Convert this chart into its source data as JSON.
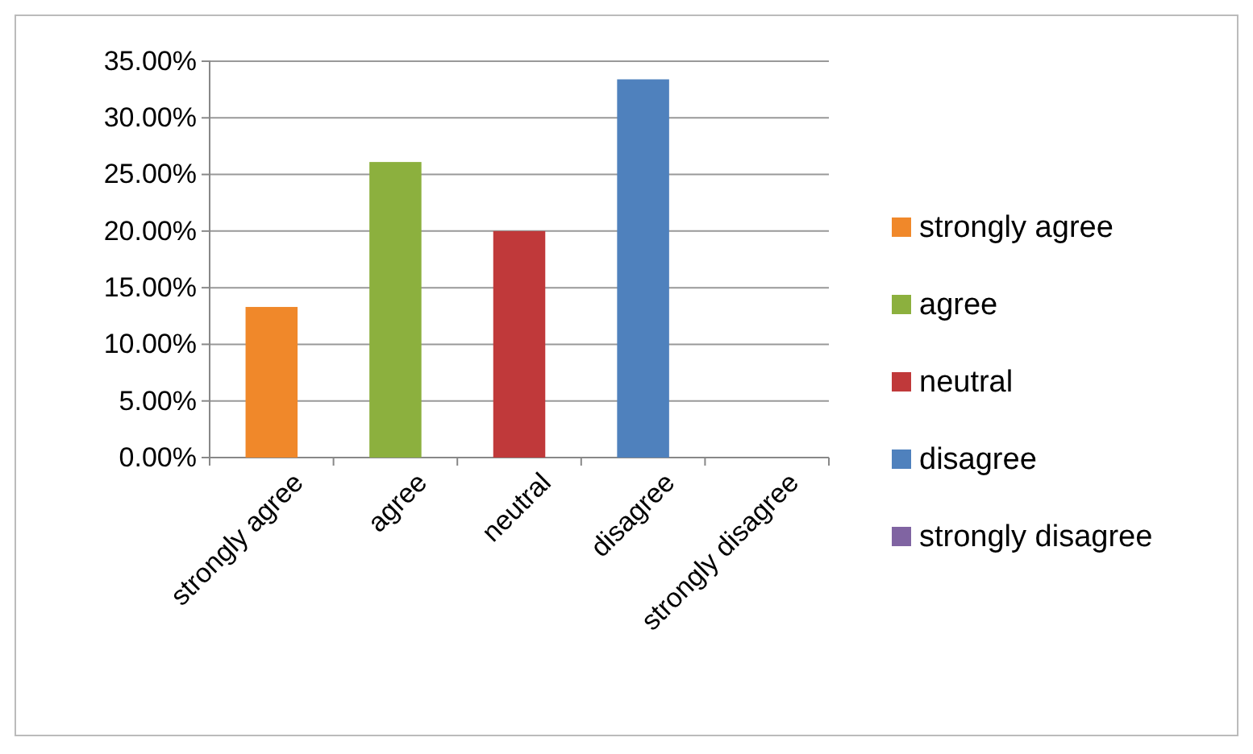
{
  "chart_data": {
    "type": "bar",
    "categories": [
      "strongly agree",
      "agree",
      "neutral",
      "disagree",
      "strongly disagree"
    ],
    "series": [
      {
        "name": "strongly agree",
        "color": "#f0882a",
        "values": [
          13.3,
          null,
          null,
          null,
          null
        ]
      },
      {
        "name": "agree",
        "color": "#8cb03e",
        "values": [
          null,
          26.1,
          null,
          null,
          null
        ]
      },
      {
        "name": "neutral",
        "color": "#c0393a",
        "values": [
          null,
          null,
          20,
          null,
          null
        ]
      },
      {
        "name": "disagree",
        "color": "#4f81bd",
        "values": [
          null,
          null,
          null,
          33.4,
          null
        ]
      },
      {
        "name": "strongly disagree",
        "color": "#8064a2",
        "values": [
          null,
          null,
          null,
          null,
          0
        ]
      }
    ],
    "ylim": [
      0,
      35
    ],
    "yticks": [
      {
        "value": 0,
        "label": "0.00%"
      },
      {
        "value": 5,
        "label": "5.00%"
      },
      {
        "value": 10,
        "label": "10.00%"
      },
      {
        "value": 15,
        "label": "15.00%"
      },
      {
        "value": 20,
        "label": "20.00%"
      },
      {
        "value": 25,
        "label": "25.00%"
      },
      {
        "value": 30,
        "label": "30.00%"
      },
      {
        "value": 35,
        "label": "35.00%"
      }
    ],
    "grid": "y",
    "legend": "right"
  }
}
